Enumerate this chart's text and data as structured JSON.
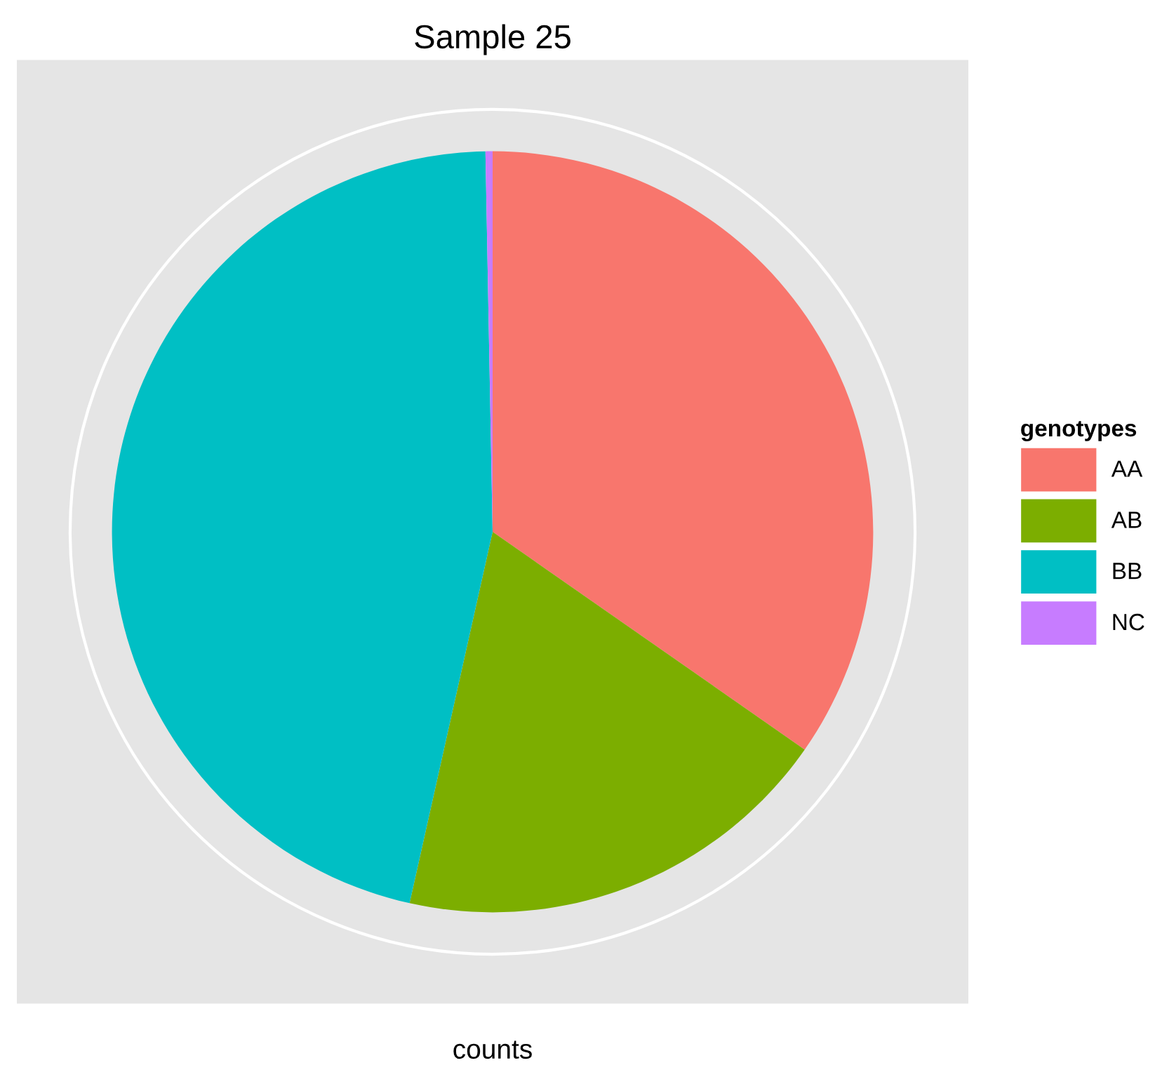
{
  "chart_data": {
    "type": "pie",
    "title": "Sample 25",
    "xlabel": "counts",
    "legend_title": "genotypes",
    "categories": [
      "AA",
      "AB",
      "BB",
      "NC"
    ],
    "values": [
      34.7,
      18.8,
      46.2,
      0.3
    ],
    "colors": [
      "#f8766d",
      "#7cae00",
      "#00bfc4",
      "#c77cff"
    ],
    "legend": "right",
    "grid": true
  }
}
